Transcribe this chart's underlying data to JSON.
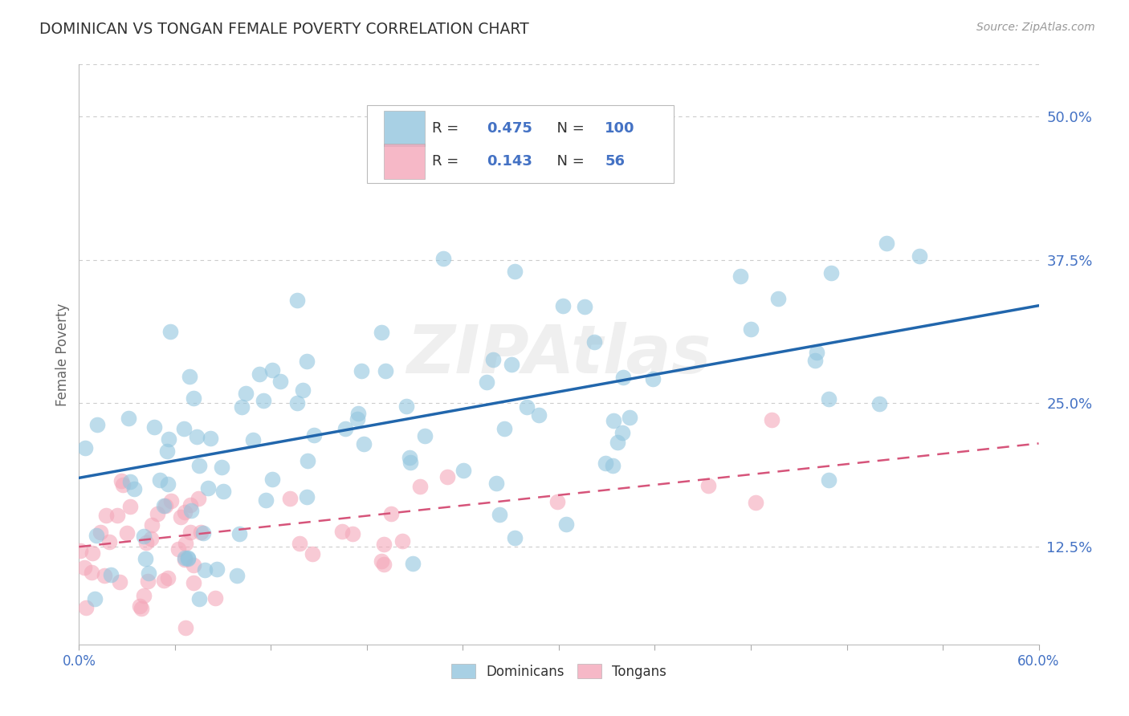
{
  "title": "DOMINICAN VS TONGAN FEMALE POVERTY CORRELATION CHART",
  "source": "Source: ZipAtlas.com",
  "ylabel": "Female Poverty",
  "ytick_labels": [
    "12.5%",
    "25.0%",
    "37.5%",
    "50.0%"
  ],
  "ytick_values": [
    0.125,
    0.25,
    0.375,
    0.5
  ],
  "xmin": 0.0,
  "xmax": 0.6,
  "ymin": 0.04,
  "ymax": 0.545,
  "dominican_R": 0.475,
  "dominican_N": 100,
  "tongan_R": 0.143,
  "tongan_N": 56,
  "dominican_color": "#92c5de",
  "tongan_color": "#f4a7b9",
  "dominican_line_color": "#2166ac",
  "tongan_line_color": "#d6547a",
  "grid_color": "#cccccc",
  "title_color": "#333333",
  "axis_label_color": "#666666",
  "right_tick_color": "#4472c4",
  "watermark": "ZIPAtlas",
  "background_color": "#ffffff",
  "dom_line_y0": 0.185,
  "dom_line_y1": 0.335,
  "ton_line_y0": 0.125,
  "ton_line_y1": 0.215
}
